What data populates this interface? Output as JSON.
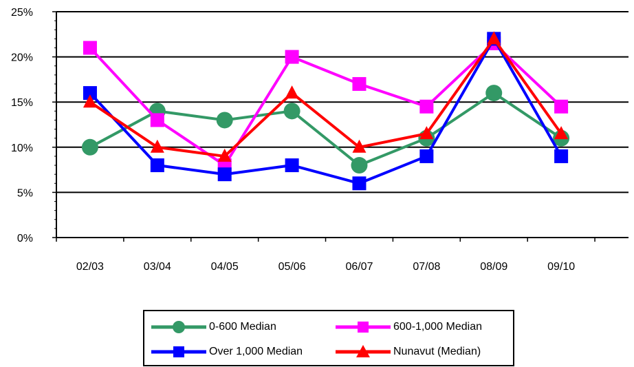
{
  "chart_data": {
    "type": "line",
    "categories": [
      "02/03",
      "03/04",
      "04/05",
      "05/06",
      "06/07",
      "07/08",
      "08/09",
      "09/10"
    ],
    "ylim": [
      0,
      25
    ],
    "yticks": [
      "0%",
      "5%",
      "10%",
      "15%",
      "20%",
      "25%"
    ],
    "ytick_values": [
      0,
      5,
      10,
      15,
      20,
      25
    ],
    "grid": "horizontal major gridlines",
    "legend_position": "bottom",
    "series": [
      {
        "name": "0-600 Median",
        "color": "#339966",
        "marker": "circle",
        "values": [
          10,
          14,
          13,
          14,
          8,
          11,
          16,
          11
        ]
      },
      {
        "name": "600-1,000 Median",
        "color": "#FF00FF",
        "marker": "square",
        "values": [
          21,
          13,
          8,
          20,
          17,
          14.5,
          21.5,
          14.5
        ]
      },
      {
        "name": "Over 1,000 Median",
        "color": "#0000FF",
        "marker": "square",
        "values": [
          16,
          8,
          7,
          8,
          6,
          9,
          22,
          9
        ]
      },
      {
        "name": "Nunavut (Median)",
        "color": "#FF0000",
        "marker": "triangle",
        "values": [
          15,
          10,
          9,
          16,
          10,
          11.5,
          22,
          11.5
        ]
      }
    ],
    "legend_order": [
      0,
      1,
      2,
      3
    ]
  }
}
